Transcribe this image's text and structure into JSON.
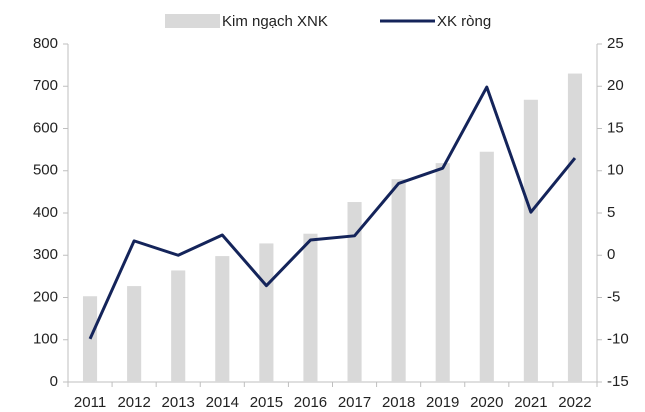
{
  "chart_data": {
    "type": "bar-line",
    "categories": [
      "2011",
      "2012",
      "2013",
      "2014",
      "2015",
      "2016",
      "2017",
      "2018",
      "2019",
      "2020",
      "2021",
      "2022"
    ],
    "series": [
      {
        "name": "Kim ngạch XNK",
        "type": "bar",
        "color": "#d9d9d9",
        "axis": "y",
        "values": [
          203,
          227,
          264,
          298,
          328,
          351,
          426,
          480,
          518,
          545,
          668,
          730
        ]
      },
      {
        "name": "XK ròng",
        "type": "line",
        "color": "#14245a",
        "axis": "y2",
        "values": [
          -9.9,
          1.7,
          0,
          2.4,
          -3.6,
          1.8,
          2.3,
          8.5,
          10.3,
          19.9,
          5.1,
          11.5
        ]
      }
    ],
    "ylim": [
      0,
      800
    ],
    "yticks": [
      0,
      100,
      200,
      300,
      400,
      500,
      600,
      700,
      800
    ],
    "y2lim": [
      -15,
      25
    ],
    "y2ticks": [
      -15,
      -10,
      -5,
      0,
      5,
      10,
      15,
      20,
      25
    ],
    "legend": "top",
    "grid": false
  }
}
